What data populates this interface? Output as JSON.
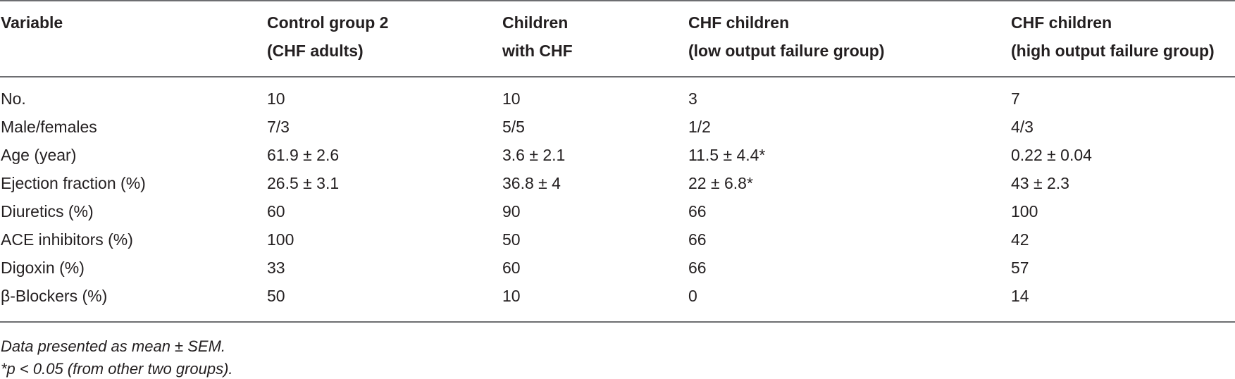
{
  "table": {
    "headers": [
      [
        "Variable"
      ],
      [
        "Control group 2",
        "(CHF adults)"
      ],
      [
        "Children",
        "with CHF"
      ],
      [
        "CHF children",
        "(low output failure group)"
      ],
      [
        "CHF children",
        "(high output failure group)"
      ]
    ],
    "rows": [
      [
        "No.",
        "10",
        "10",
        "3",
        "7"
      ],
      [
        "Male/females",
        "7/3",
        "5/5",
        "1/2",
        "4/3"
      ],
      [
        "Age (year)",
        "61.9 ± 2.6",
        "3.6 ± 2.1",
        "11.5 ± 4.4*",
        "0.22 ± 0.04"
      ],
      [
        "Ejection fraction (%)",
        "26.5 ± 3.1",
        "36.8 ± 4",
        "22 ± 6.8*",
        "43 ± 2.3"
      ],
      [
        "Diuretics (%)",
        "60",
        "90",
        "66",
        "100"
      ],
      [
        "ACE inhibitors (%)",
        "100",
        "50",
        "66",
        "42"
      ],
      [
        "Digoxin (%)",
        "33",
        "60",
        "66",
        "57"
      ],
      [
        "β-Blockers (%)",
        "50",
        "10",
        "0",
        "14"
      ]
    ]
  },
  "footnotes": [
    "Data presented as mean ± SEM.",
    "*p < 0.05 (from other two groups)."
  ]
}
